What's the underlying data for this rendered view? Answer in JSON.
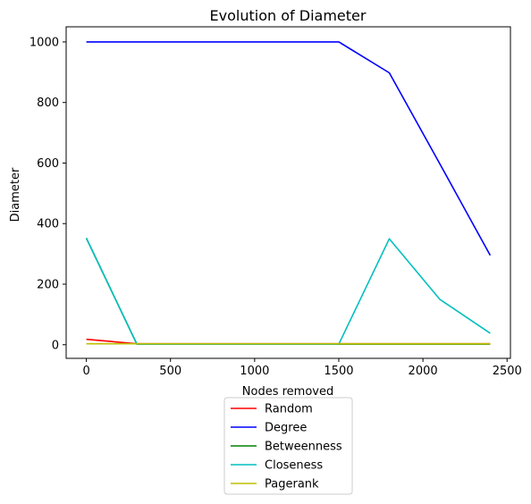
{
  "chart_data": {
    "type": "line",
    "title": "Evolution of Diameter",
    "xlabel": "Nodes removed",
    "ylabel": "Diameter",
    "xlim": [
      -120,
      2520
    ],
    "ylim": [
      -45,
      1050
    ],
    "xticks": [
      0,
      500,
      1000,
      1500,
      2000,
      2500
    ],
    "yticks": [
      0,
      200,
      400,
      600,
      800,
      1000
    ],
    "grid": false,
    "legend_position": "below-center",
    "series": [
      {
        "name": "Random",
        "color": "#ff0000",
        "x": [
          0,
          300,
          600,
          900,
          1200,
          1500,
          1800,
          2100,
          2400
        ],
        "y": [
          18,
          3,
          3,
          3,
          3,
          3,
          3,
          3,
          3
        ]
      },
      {
        "name": "Degree",
        "color": "#0000ff",
        "x": [
          0,
          300,
          600,
          900,
          1200,
          1500,
          1800,
          2100,
          2400
        ],
        "y": [
          1000,
          1000,
          1000,
          1000,
          1000,
          1000,
          898,
          598,
          295
        ]
      },
      {
        "name": "Betweenness",
        "color": "#008000",
        "x": [
          0,
          300,
          600,
          900,
          1200,
          1500,
          1800,
          2100,
          2400
        ],
        "y": [
          352,
          2,
          2,
          2,
          2,
          2,
          2,
          2,
          2
        ]
      },
      {
        "name": "Closeness",
        "color": "#00bfbf",
        "x": [
          0,
          300,
          600,
          900,
          1200,
          1500,
          1800,
          2100,
          2400
        ],
        "y": [
          352,
          2,
          2,
          2,
          2,
          2,
          350,
          150,
          38
        ]
      },
      {
        "name": "Pagerank",
        "color": "#bfbf00",
        "x": [
          0,
          300,
          600,
          900,
          1200,
          1500,
          1800,
          2100,
          2400
        ],
        "y": [
          3,
          3,
          3,
          3,
          3,
          3,
          3,
          3,
          3
        ]
      }
    ]
  }
}
